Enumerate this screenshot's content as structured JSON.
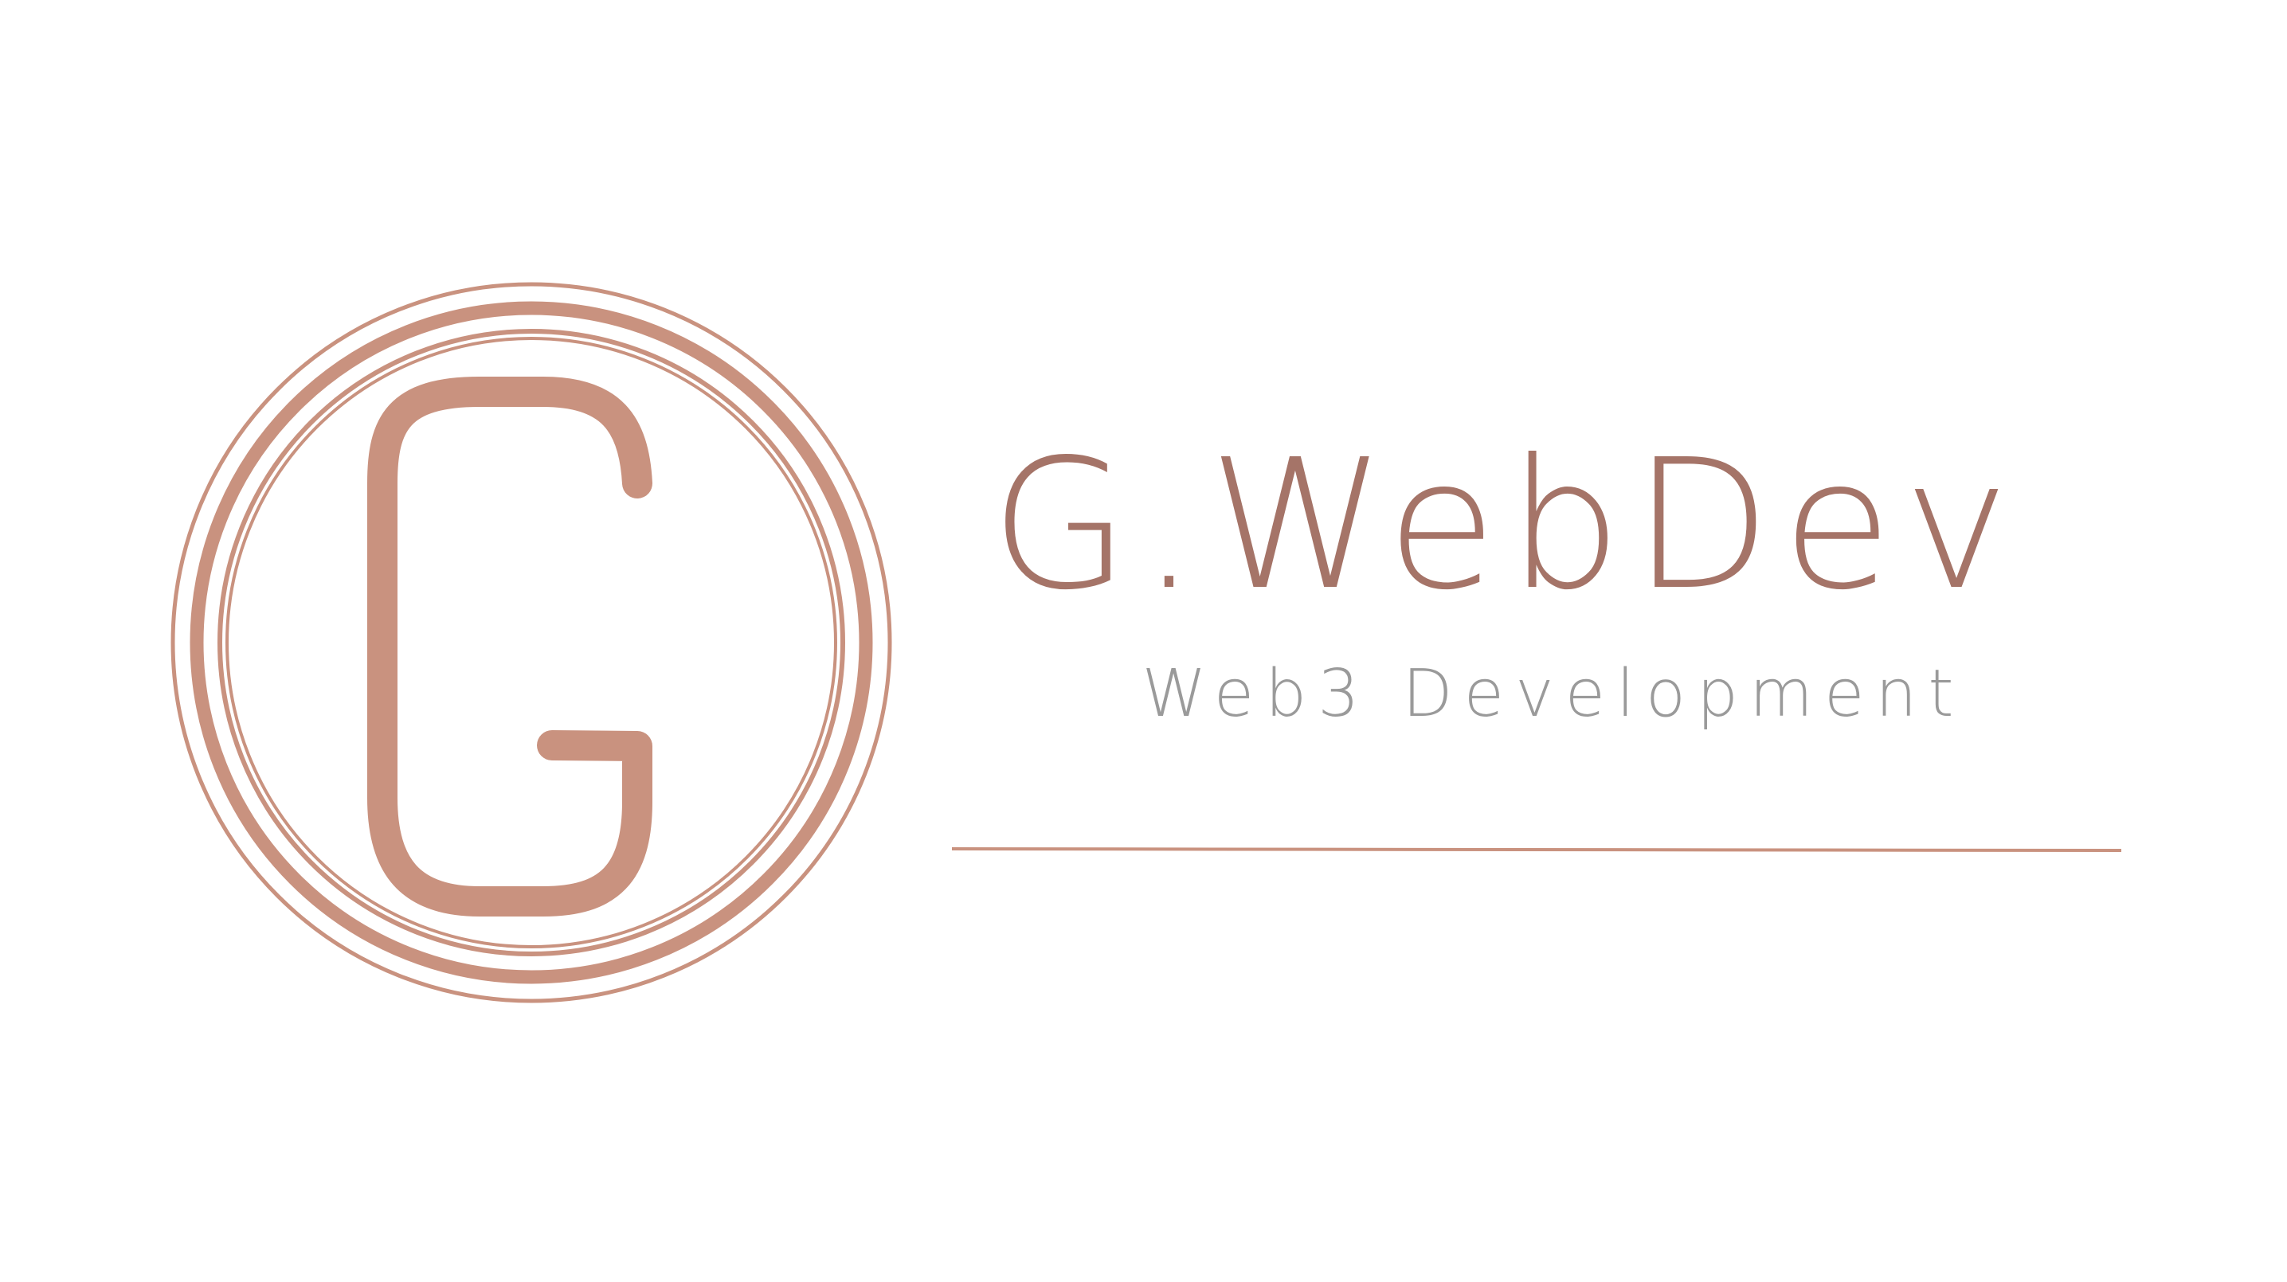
{
  "logo": {
    "emblem_letter": "G",
    "brand_name": "G.WebDev",
    "tagline": "Web3 Development"
  },
  "icons": {
    "emblem": "concentric-circles-monogram-icon"
  },
  "colors": {
    "background": "#ffffff",
    "emblem": "#c9927f",
    "brand_name": "#a57468",
    "tagline": "#9a9a9a",
    "rule": "#c9927f"
  }
}
